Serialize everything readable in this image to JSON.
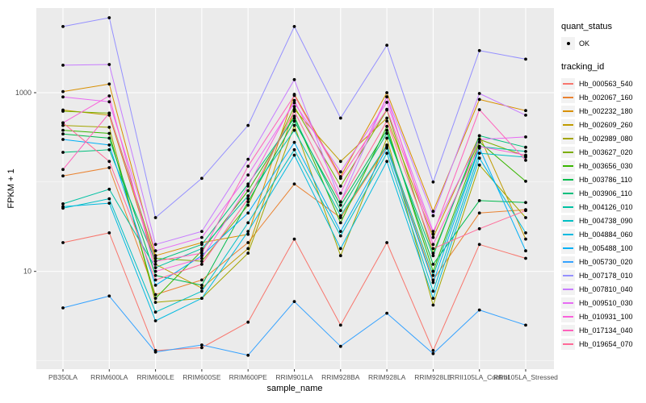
{
  "figure": {
    "background": "#FFFFFF",
    "panel_background": "#EBEBEB",
    "grid_color": "#FFFFFF",
    "tick_mark_color": "#333333",
    "tick_label_color": "#4D4D4D",
    "point_color": "#000000",
    "legend_key_background": "#F2F2F2"
  },
  "legend": {
    "quant_title": "quant_status",
    "quant_items": [
      {
        "label": "OK",
        "symbol": "point"
      }
    ],
    "tracking_title": "tracking_id"
  },
  "chart_data": {
    "type": "line",
    "title": "",
    "xlabel": "sample_name",
    "ylabel": "FPKM + 1",
    "y_scale": "log10",
    "grid": true,
    "legend_position": "right",
    "marker": "black point (quant_status = OK) at every sample",
    "y_ticks": [
      10,
      1000
    ],
    "y_minor_ticks": [
      1,
      100,
      10000
    ],
    "ylim_log10": [
      -0.09,
      3.95
    ],
    "categories": [
      "PB350LA",
      "RRIM600LA",
      "RRIM600LE",
      "RRIM600SE",
      "RRIM600PE",
      "RRIM901LA",
      "RRIM928BA",
      "RRIM928LA",
      "RRIM928LE",
      "RRII105LA_Control",
      "RRII105LA_Stressed"
    ],
    "series": [
      {
        "name": "Hb_000563_540",
        "color": "#F8766D",
        "values": [
          21,
          27,
          1.3,
          1.4,
          2.7,
          23,
          2.5,
          21,
          1.3,
          20,
          14
        ]
      },
      {
        "name": "Hb_002067_160",
        "color": "#EA8331",
        "values": [
          117,
          145,
          5.5,
          8,
          21,
          95,
          40,
          250,
          8,
          45,
          49
        ]
      },
      {
        "name": "Hb_002232_180",
        "color": "#D89000",
        "values": [
          1030,
          1250,
          15,
          21,
          26,
          960,
          115,
          1000,
          47,
          840,
          630
        ]
      },
      {
        "name": "Hb_002609_260",
        "color": "#C09B00",
        "values": [
          640,
          560,
          12,
          6.5,
          18,
          650,
          170,
          520,
          24,
          330,
          23
        ]
      },
      {
        "name": "Hb_002989_080",
        "color": "#A3A500",
        "values": [
          430,
          410,
          4.5,
          5,
          16,
          430,
          15,
          310,
          4.2,
          155,
          40
        ]
      },
      {
        "name": "Hb_003627_020",
        "color": "#7CAE00",
        "values": [
          620,
          590,
          14,
          13,
          55,
          700,
          90,
          640,
          16,
          300,
          195
        ]
      },
      {
        "name": "Hb_003656_030",
        "color": "#39B600",
        "values": [
          380,
          350,
          5,
          17,
          80,
          545,
          35,
          420,
          10,
          280,
          102
        ]
      },
      {
        "name": "Hb_003786_110",
        "color": "#00BB4E",
        "values": [
          345,
          310,
          9,
          7,
          60,
          480,
          55,
          380,
          12,
          62,
          59
        ]
      },
      {
        "name": "Hb_003906_110",
        "color": "#00BF7D",
        "values": [
          215,
          230,
          13,
          20,
          95,
          520,
          48,
          350,
          15,
          330,
          245
        ]
      },
      {
        "name": "Hb_004126_010",
        "color": "#00C1A3",
        "values": [
          57,
          83,
          11,
          18,
          70,
          380,
          42,
          260,
          9,
          250,
          220
        ]
      },
      {
        "name": "Hb_004738_090",
        "color": "#00BFC4",
        "values": [
          51,
          65,
          3.5,
          6,
          35,
          230,
          25,
          210,
          6,
          210,
          190
        ]
      },
      {
        "name": "Hb_004884_060",
        "color": "#00BAE0",
        "values": [
          53,
          58,
          2.8,
          5,
          28,
          200,
          18,
          170,
          5,
          185,
          27
        ]
      },
      {
        "name": "Hb_005488_100",
        "color": "#00B0F6",
        "values": [
          300,
          260,
          7,
          15,
          45,
          278,
          28,
          240,
          7.5,
          240,
          17
        ]
      },
      {
        "name": "Hb_005730_020",
        "color": "#35A2FF",
        "values": [
          3.9,
          5.3,
          1.25,
          1.5,
          1.15,
          4.6,
          1.45,
          3.4,
          1.2,
          3.7,
          2.5
        ]
      },
      {
        "name": "Hb_007178_010",
        "color": "#9590FF",
        "values": [
          5500,
          6900,
          40,
          110,
          430,
          5500,
          520,
          3400,
          100,
          2960,
          2375
        ]
      },
      {
        "name": "Hb_007810_040",
        "color": "#C77CFF",
        "values": [
          2030,
          2070,
          20,
          28,
          180,
          1400,
          60,
          900,
          42,
          980,
          560
        ]
      },
      {
        "name": "Hb_009510_030",
        "color": "#E76BF3",
        "values": [
          895,
          790,
          17,
          24,
          120,
          770,
          130,
          780,
          28,
          300,
          320
        ]
      },
      {
        "name": "Hb_010931_100",
        "color": "#FA62DB",
        "values": [
          460,
          920,
          10,
          14,
          90,
          820,
          75,
          900,
          20,
          250,
          200
        ]
      },
      {
        "name": "Hb_017134_040",
        "color": "#FF62BC",
        "values": [
          138,
          590,
          13,
          16,
          150,
          930,
          110,
          650,
          26,
          645,
          175
        ]
      },
      {
        "name": "Hb_019654_070",
        "color": "#FF6A98",
        "values": [
          460,
          170,
          8,
          12,
          65,
          620,
          60,
          480,
          18,
          30,
          48
        ]
      }
    ]
  }
}
